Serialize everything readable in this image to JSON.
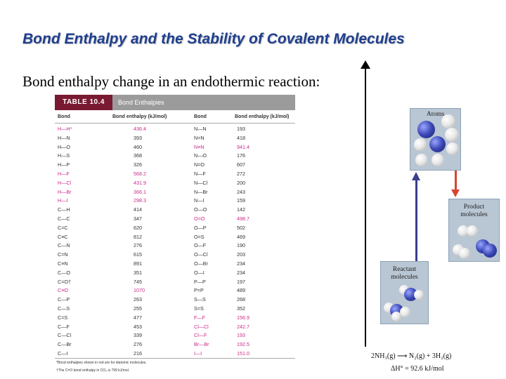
{
  "title": "Bond Enthalpy and the Stability of Covalent Molecules",
  "subtitle": "Bond enthalpy change in an endothermic reaction:",
  "table": {
    "tag": "TABLE 10.4",
    "name": "Bond Enthalpies",
    "headers": [
      "Bond",
      "Bond enthalpy (kJ/mol)",
      "Bond",
      "Bond enthalpy (kJ/mol)"
    ],
    "rows": [
      {
        "b1": "H—H*",
        "v1": "436.4",
        "b2": "N—N",
        "v2": "193",
        "hl1": true,
        "hl2": false
      },
      {
        "b1": "H—N",
        "v1": "393",
        "b2": "N=N",
        "v2": "418",
        "hl1": false,
        "hl2": false
      },
      {
        "b1": "H—O",
        "v1": "460",
        "b2": "N≡N",
        "v2": "941.4",
        "hl1": false,
        "hl2": true
      },
      {
        "b1": "H—S",
        "v1": "368",
        "b2": "N—O",
        "v2": "176",
        "hl1": false,
        "hl2": false
      },
      {
        "b1": "H—P",
        "v1": "326",
        "b2": "N=O",
        "v2": "607",
        "hl1": false,
        "hl2": false
      },
      {
        "b1": "H—F",
        "v1": "568.2",
        "b2": "N—F",
        "v2": "272",
        "hl1": true,
        "hl2": false
      },
      {
        "b1": "H—Cl",
        "v1": "431.9",
        "b2": "N—Cl",
        "v2": "200",
        "hl1": true,
        "hl2": false
      },
      {
        "b1": "H—Br",
        "v1": "366.1",
        "b2": "N—Br",
        "v2": "243",
        "hl1": true,
        "hl2": false
      },
      {
        "b1": "H—I",
        "v1": "298.3",
        "b2": "N—I",
        "v2": "159",
        "hl1": true,
        "hl2": false
      },
      {
        "b1": "C—H",
        "v1": "414",
        "b2": "O—O",
        "v2": "142",
        "hl1": false,
        "hl2": false
      },
      {
        "b1": "C—C",
        "v1": "347",
        "b2": "O=O",
        "v2": "498.7",
        "hl1": false,
        "hl2": true
      },
      {
        "b1": "C=C",
        "v1": "620",
        "b2": "O—P",
        "v2": "502",
        "hl1": false,
        "hl2": false
      },
      {
        "b1": "C≡C",
        "v1": "812",
        "b2": "O=S",
        "v2": "469",
        "hl1": false,
        "hl2": false
      },
      {
        "b1": "C—N",
        "v1": "276",
        "b2": "O—F",
        "v2": "190",
        "hl1": false,
        "hl2": false
      },
      {
        "b1": "C=N",
        "v1": "615",
        "b2": "O—Cl",
        "v2": "203",
        "hl1": false,
        "hl2": false
      },
      {
        "b1": "C≡N",
        "v1": "891",
        "b2": "O—Br",
        "v2": "234",
        "hl1": false,
        "hl2": false
      },
      {
        "b1": "C—O",
        "v1": "351",
        "b2": "O—I",
        "v2": "234",
        "hl1": false,
        "hl2": false
      },
      {
        "b1": "C=O†",
        "v1": "745",
        "b2": "P—P",
        "v2": "197",
        "hl1": false,
        "hl2": false
      },
      {
        "b1": "C≡O",
        "v1": "1070",
        "b2": "P=P",
        "v2": "489",
        "hl1": true,
        "hl2": false
      },
      {
        "b1": "C—P",
        "v1": "263",
        "b2": "S—S",
        "v2": "268",
        "hl1": false,
        "hl2": false
      },
      {
        "b1": "C—S",
        "v1": "255",
        "b2": "S=S",
        "v2": "352",
        "hl1": false,
        "hl2": false
      },
      {
        "b1": "C=S",
        "v1": "477",
        "b2": "F—F",
        "v2": "156.9",
        "hl1": false,
        "hl2": true
      },
      {
        "b1": "C—F",
        "v1": "453",
        "b2": "Cl—Cl",
        "v2": "242.7",
        "hl1": false,
        "hl2": true
      },
      {
        "b1": "C—Cl",
        "v1": "339",
        "b2": "Cl—F",
        "v2": "193",
        "hl1": false,
        "hl2": true
      },
      {
        "b1": "C—Br",
        "v1": "276",
        "b2": "Br—Br",
        "v2": "192.5",
        "hl1": false,
        "hl2": true
      },
      {
        "b1": "C—I",
        "v1": "216",
        "b2": "I—I",
        "v2": "151.0",
        "hl1": false,
        "hl2": true
      }
    ],
    "footnotes": [
      "*Bond enthalpies shown in red are for diatomic molecules.",
      "†The C=O bond enthalpy in CO₂ is 799 kJ/mol."
    ],
    "highlight_color": "#cc2a8a",
    "header_color": "#7a1a32"
  },
  "diagram": {
    "atoms_label": "Atoms",
    "product_label": "Product molecules",
    "reactant_label": "Reactant molecules",
    "equation": "2NH₃(g) ⟶ N₂(g) + 3H₂(g)",
    "enthalpy": "ΔH° = 92.6 kJ/mol"
  }
}
